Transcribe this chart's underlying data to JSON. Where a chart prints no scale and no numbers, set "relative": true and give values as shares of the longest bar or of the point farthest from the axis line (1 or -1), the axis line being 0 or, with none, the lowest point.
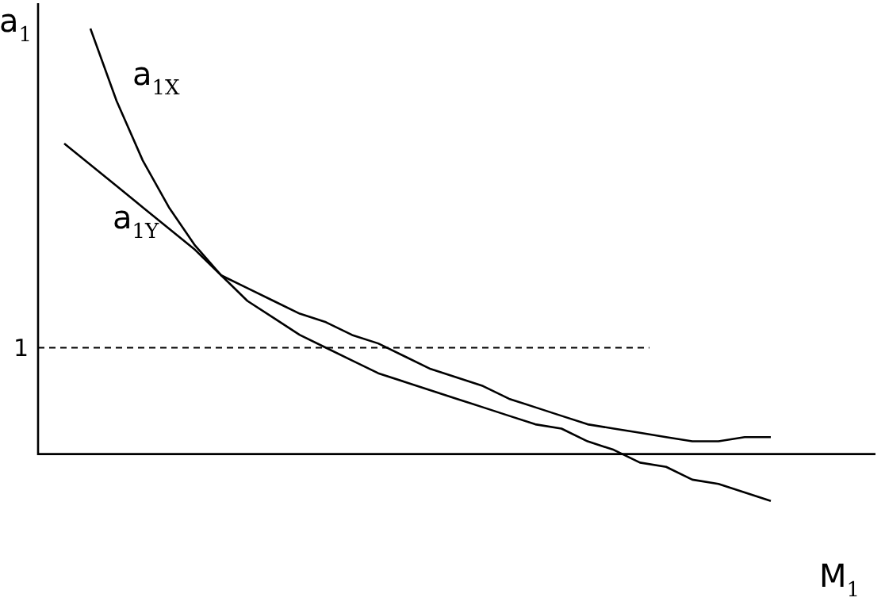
{
  "chart_data": {
    "type": "line",
    "relative": true,
    "ylabel": "a$_{1}$",
    "xlabel": "M$_{1}$",
    "legend": false,
    "marker": "none",
    "annotations": [
      "1"
    ],
    "categories": [
      null,
      null,
      null,
      null,
      null,
      null,
      null,
      null,
      null,
      null,
      null,
      null,
      null,
      null,
      null,
      null,
      null,
      null,
      null,
      null,
      null,
      null,
      null,
      null,
      null,
      null,
      null,
      null,
      null,
      null,
      null,
      null,
      null
    ],
    "series": [
      {
        "name": "a$_{1X}$",
        "color": "#000000",
        "values": [
          null,
          null,
          1,
          0.83,
          0.69,
          0.58,
          0.49,
          0.42,
          0.36,
          0.32,
          0.28,
          0.25,
          0.22,
          0.19,
          0.17,
          0.15,
          0.13,
          0.11,
          0.09,
          0.07,
          0.06,
          0.03,
          0.01,
          -0.02,
          -0.03,
          -0.06,
          -0.07,
          -0.09,
          -0.11,
          null,
          null,
          null,
          null
        ]
      },
      {
        "name": "a$_{1Y}$",
        "color": "#000000",
        "values": [
          null,
          0.73,
          0.68,
          0.63,
          0.58,
          0.53,
          0.48,
          0.42,
          0.39,
          0.36,
          0.33,
          0.31,
          0.28,
          0.26,
          0.23,
          0.2,
          0.18,
          0.16,
          0.13,
          0.11,
          0.09,
          0.07,
          0.06,
          0.05,
          0.04,
          0.03,
          0.03,
          0.04,
          0.04,
          null,
          null,
          null,
          null
        ]
      }
    ],
    "ref_lines": [
      {
        "axis": "y",
        "value": 0.25,
        "line_style": "dashed",
        "color": "#000000"
      }
    ]
  }
}
